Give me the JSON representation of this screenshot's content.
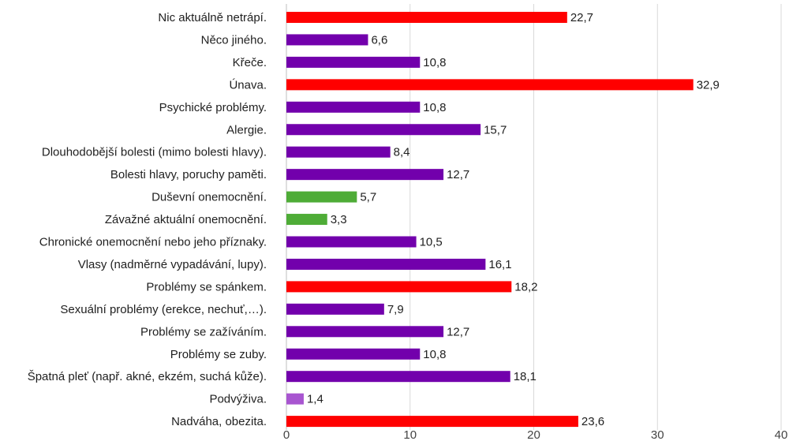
{
  "chart_data": {
    "type": "bar",
    "orientation": "horizontal",
    "categories": [
      "Nic aktuálně netrápí.",
      "Něco jiného.",
      "Křeče.",
      "Únava.",
      "Psychické problémy.",
      "Alergie.",
      "Dlouhodobější bolesti (mimo bolesti hlavy).",
      "Bolesti hlavy, poruchy paměti.",
      "Duševní onemocnění.",
      "Závažné aktuální onemocnění.",
      "Chronické onemocnění nebo jeho příznaky.",
      "Vlasy (nadměrné vypadávání, lupy).",
      "Problémy se spánkem.",
      "Sexuální problémy (erekce, nechuť,…).",
      "Problémy se zažíváním.",
      "Problémy se zuby.",
      "Špatná pleť (např. akné, ekzém, suchá kůže).",
      "Podvýživa.",
      "Nadváha, obezita."
    ],
    "values": [
      22.7,
      6.6,
      10.8,
      32.9,
      10.8,
      15.7,
      8.4,
      12.7,
      5.7,
      3.3,
      10.5,
      16.1,
      18.2,
      7.9,
      12.7,
      10.8,
      18.1,
      1.4,
      23.6
    ],
    "value_labels": [
      "22,7",
      "6,6",
      "10,8",
      "32,9",
      "10,8",
      "15,7",
      "8,4",
      "12,7",
      "5,7",
      "3,3",
      "10,5",
      "16,1",
      "18,2",
      "7,9",
      "12,7",
      "10,8",
      "18,1",
      "1,4",
      "23,6"
    ],
    "colors": [
      "#ff0000",
      "#7200ac",
      "#7200ac",
      "#ff0000",
      "#7200ac",
      "#7200ac",
      "#7200ac",
      "#7200ac",
      "#4eac37",
      "#4eac37",
      "#7200ac",
      "#7200ac",
      "#ff0000",
      "#7200ac",
      "#7200ac",
      "#7200ac",
      "#7200ac",
      "#a855d0",
      "#ff0000"
    ],
    "xlim": [
      0,
      40
    ],
    "xticks": [
      0,
      10,
      20,
      30,
      40
    ],
    "xtick_labels": [
      "0",
      "10",
      "20",
      "30",
      "40"
    ],
    "grid": true,
    "title": "",
    "xlabel": "",
    "ylabel": ""
  }
}
